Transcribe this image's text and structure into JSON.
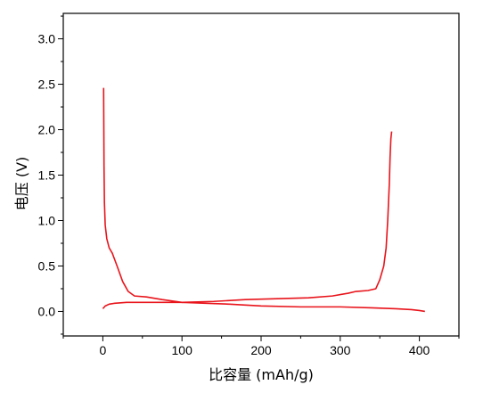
{
  "chart_data": {
    "type": "line",
    "title": "",
    "xlabel": "比容量 (mAh/g)",
    "ylabel": "电压 (V)",
    "xlim": [
      -50,
      450
    ],
    "ylim": [
      -0.27,
      3.28
    ],
    "x_ticks": [
      0,
      100,
      200,
      300,
      400
    ],
    "y_ticks": [
      0.0,
      0.5,
      1.0,
      1.5,
      2.0,
      2.5,
      3.0
    ],
    "x_tick_labels": [
      "0",
      "100",
      "200",
      "300",
      "400"
    ],
    "y_tick_labels": [
      "0.0",
      "0.5",
      "1.0",
      "1.5",
      "2.0",
      "2.5",
      "3.0"
    ],
    "grid": false,
    "line_color": "#e8141b",
    "series": [
      {
        "x": [
          1,
          1.5,
          2,
          3,
          5,
          8,
          12,
          18,
          25,
          32,
          40,
          55,
          75,
          100,
          130,
          160,
          200,
          250,
          300,
          340,
          370,
          390,
          400,
          407
        ],
        "y": [
          2.46,
          1.6,
          1.2,
          0.95,
          0.8,
          0.7,
          0.64,
          0.5,
          0.33,
          0.22,
          0.17,
          0.16,
          0.13,
          0.1,
          0.09,
          0.08,
          0.06,
          0.05,
          0.05,
          0.04,
          0.03,
          0.02,
          0.01,
          0.0
        ]
      },
      {
        "x": [
          0,
          3,
          8,
          15,
          30,
          60,
          100,
          140,
          180,
          220,
          260,
          290,
          310,
          320,
          335,
          345,
          350,
          355,
          358,
          360,
          362,
          363,
          364,
          365
        ],
        "y": [
          0.03,
          0.06,
          0.08,
          0.09,
          0.1,
          0.1,
          0.1,
          0.11,
          0.13,
          0.14,
          0.15,
          0.17,
          0.2,
          0.22,
          0.23,
          0.25,
          0.35,
          0.5,
          0.7,
          1.0,
          1.4,
          1.7,
          1.9,
          1.98
        ]
      }
    ]
  }
}
